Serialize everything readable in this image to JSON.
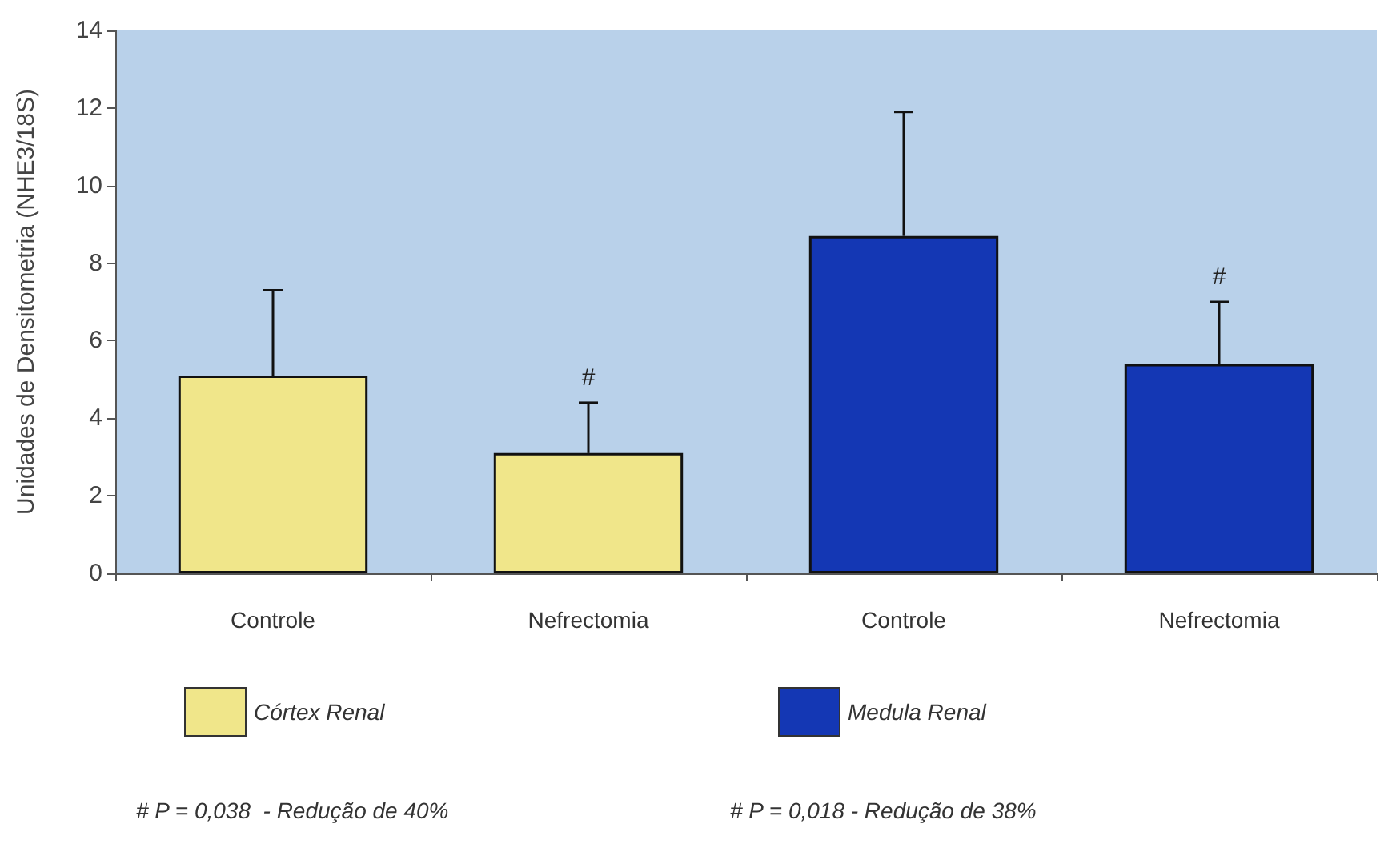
{
  "chart_data": {
    "type": "bar",
    "ylabel": "Unidades de Densitometria (NHE3/18S)",
    "categories": [
      "Controle",
      "Nefrectomia",
      "Controle",
      "Nefrectomia"
    ],
    "series": [
      {
        "name": "Córtex Renal",
        "color": "#f0e68a",
        "values": [
          5.1,
          3.1,
          null,
          null
        ],
        "errors": [
          2.2,
          1.3,
          null,
          null
        ],
        "value_labels": [
          null,
          "#",
          null,
          null
        ]
      },
      {
        "name": "Medula Renal",
        "color": "#1437b4",
        "values": [
          null,
          null,
          8.7,
          5.4
        ],
        "errors": [
          null,
          null,
          3.2,
          1.6
        ],
        "value_labels": [
          null,
          null,
          null,
          "#"
        ]
      }
    ],
    "ylim": [
      0,
      14
    ],
    "yticks": [
      0,
      2,
      4,
      6,
      8,
      10,
      12,
      14
    ],
    "grid": false,
    "legend": "bottom",
    "annotations": [
      "# P = 0,038  - Redução de 40%",
      "# P = 0,018 - Redução de 38%"
    ]
  }
}
